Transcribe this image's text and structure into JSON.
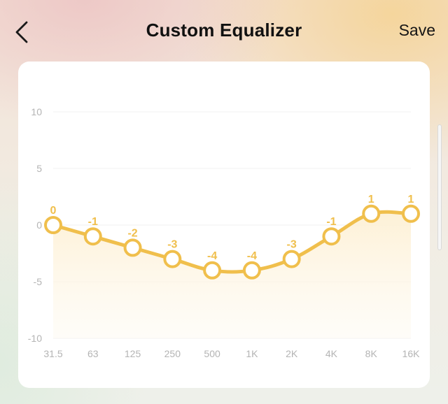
{
  "header": {
    "title": "Custom Equalizer",
    "save_label": "Save",
    "back_icon": "chevron-left-icon"
  },
  "colors": {
    "accent": "#f0bf4c",
    "fill_top": "#fdf3dc",
    "grid": "#f2f2f2",
    "tick": "#b4b4b4"
  },
  "chart_data": {
    "type": "line",
    "title": "",
    "xlabel": "",
    "ylabel": "",
    "categories": [
      "31.5",
      "63",
      "125",
      "250",
      "500",
      "1K",
      "2K",
      "4K",
      "8K",
      "16K"
    ],
    "values": [
      0,
      -1,
      -2,
      -3,
      -4,
      -4,
      -3,
      -1,
      1,
      1
    ],
    "value_labels": [
      "0",
      "-1",
      "-2",
      "-3",
      "-4",
      "-4",
      "-3",
      "-1",
      "1",
      "1"
    ],
    "ylim": [
      -10,
      10
    ],
    "yticks": [
      "10",
      "5",
      "0",
      "-5",
      "-10"
    ],
    "ytick_values": [
      10,
      5,
      0,
      -5,
      -10
    ],
    "grid": true,
    "legend": "none"
  }
}
